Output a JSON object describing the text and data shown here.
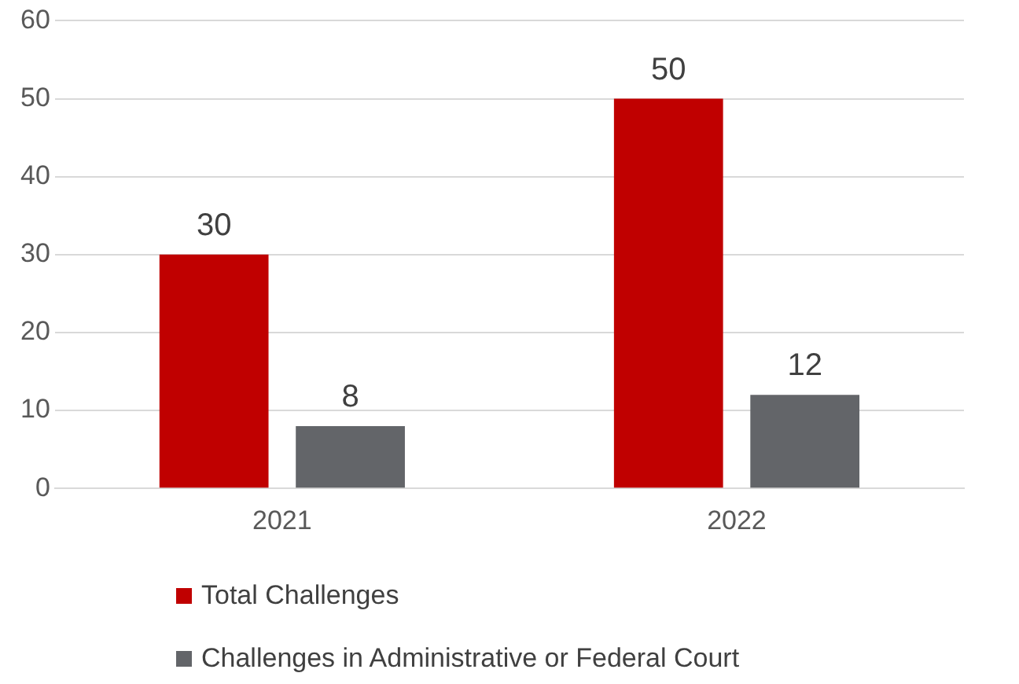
{
  "chart_data": {
    "type": "bar",
    "categories": [
      "2021",
      "2022"
    ],
    "series": [
      {
        "name": "Total Challenges",
        "color": "#c00000",
        "values": [
          30,
          50
        ]
      },
      {
        "name": "Challenges in Administrative or Federal Court",
        "color": "#636569",
        "values": [
          8,
          12
        ]
      }
    ],
    "ylim": [
      0,
      60
    ],
    "yticks": [
      0,
      10,
      20,
      30,
      40,
      50,
      60
    ],
    "grid": "y",
    "legend": "bottom",
    "data_labels": true
  }
}
